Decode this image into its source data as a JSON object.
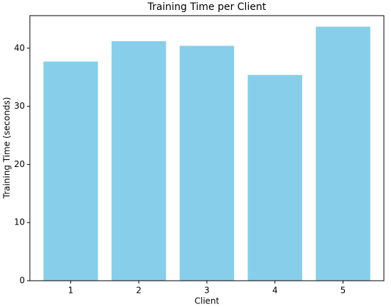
{
  "chart_data": {
    "type": "bar",
    "title": "Training Time per Client",
    "x_label": "Client",
    "y_label": "Training Time (seconds)",
    "categories": [
      "1",
      "2",
      "3",
      "4",
      "5"
    ],
    "values": [
      37.7,
      41.2,
      40.4,
      35.4,
      43.7
    ],
    "color": "#87ceeb",
    "ylim": [
      0,
      45.6
    ],
    "yticks": [
      0,
      10,
      20,
      30,
      40
    ],
    "grid": false
  }
}
